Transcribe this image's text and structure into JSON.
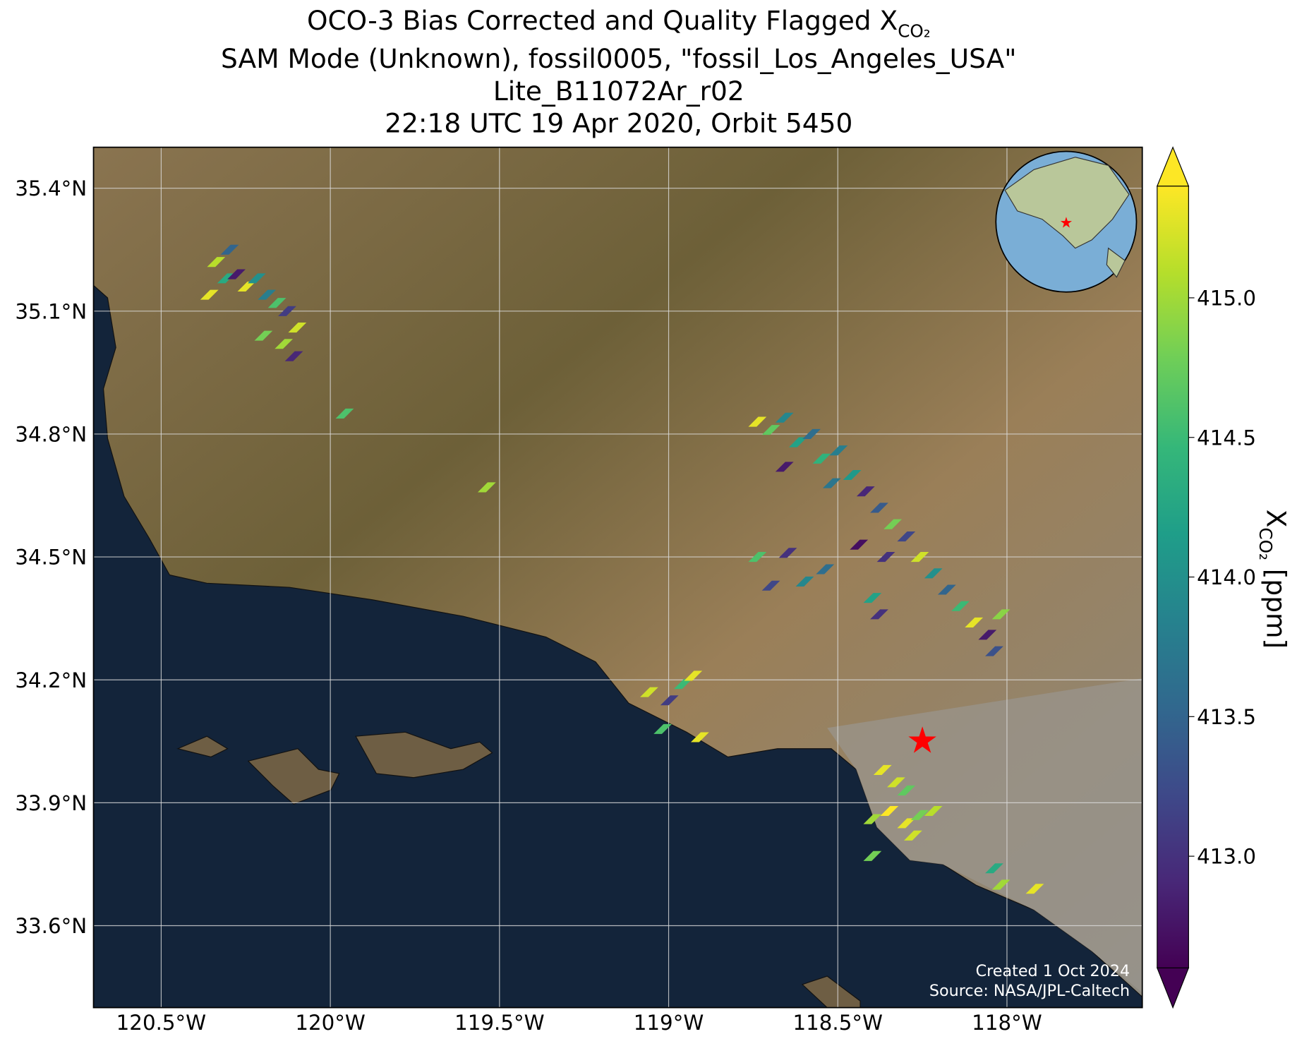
{
  "title": {
    "prefix": "OCO-3 Bias Corrected and Quality Flagged X",
    "subscript": "CO₂",
    "line2": "SAM Mode (Unknown), fossil0005, \"fossil_Los_Angeles_USA\"",
    "line3": "Lite_B11072Ar_r02",
    "line4": "22:18 UTC 19 Apr 2020, Orbit 5450"
  },
  "map": {
    "xlim": [
      -120.7,
      -117.6
    ],
    "ylim": [
      33.4,
      35.5
    ],
    "grid": true,
    "colormap": "viridis",
    "xticks": [
      {
        "value": -120.5,
        "label": "120.5°W"
      },
      {
        "value": -120,
        "label": "120°W"
      },
      {
        "value": -119.5,
        "label": "119.5°W"
      },
      {
        "value": -119,
        "label": "119°W"
      },
      {
        "value": -118.5,
        "label": "118.5°W"
      },
      {
        "value": -118,
        "label": "118°W"
      }
    ],
    "yticks": [
      {
        "value": 33.6,
        "label": "33.6°N"
      },
      {
        "value": 33.9,
        "label": "33.9°N"
      },
      {
        "value": 34.2,
        "label": "34.2°N"
      },
      {
        "value": 34.5,
        "label": "34.5°N"
      },
      {
        "value": 34.8,
        "label": "34.8°N"
      },
      {
        "value": 35.1,
        "label": "35.1°N"
      },
      {
        "value": 35.4,
        "label": "35.4°N"
      }
    ],
    "target": {
      "lon": -118.25,
      "lat": 34.05
    },
    "soundings": {
      "lon": [
        -120.34,
        -120.31,
        -120.28,
        -120.25,
        -120.22,
        -120.19,
        -120.16,
        -120.13,
        -120.1,
        -120.2,
        -120.14,
        -120.11,
        -120.3,
        -120.36,
        -119.96,
        -119.54,
        -118.74,
        -118.7,
        -118.66,
        -118.62,
        -118.58,
        -118.55,
        -118.5,
        -118.46,
        -118.42,
        -118.38,
        -118.34,
        -118.3,
        -118.44,
        -118.36,
        -118.26,
        -118.22,
        -118.18,
        -118.14,
        -118.1,
        -118.06,
        -118.02,
        -118.04,
        -118.66,
        -118.52,
        -118.74,
        -118.65,
        -118.6,
        -118.54,
        -118.7,
        -118.4,
        -118.38,
        -119.06,
        -119.0,
        -118.96,
        -118.93,
        -119.02,
        -118.91,
        -118.37,
        -118.33,
        -118.3,
        -118.35,
        -118.3,
        -118.26,
        -118.22,
        -118.28,
        -118.4,
        -118.4,
        -118.04,
        -118.02,
        -117.92
      ],
      "lat": [
        35.22,
        35.18,
        35.19,
        35.16,
        35.18,
        35.14,
        35.12,
        35.1,
        35.06,
        35.04,
        35.02,
        34.99,
        35.25,
        35.14,
        34.85,
        34.67,
        34.83,
        34.81,
        34.84,
        34.78,
        34.8,
        34.74,
        34.76,
        34.7,
        34.66,
        34.62,
        34.58,
        34.55,
        34.53,
        34.5,
        34.5,
        34.46,
        34.42,
        34.38,
        34.34,
        34.31,
        34.36,
        34.27,
        34.72,
        34.68,
        34.5,
        34.51,
        34.44,
        34.47,
        34.43,
        34.4,
        34.36,
        34.17,
        34.15,
        34.19,
        34.21,
        34.08,
        34.06,
        33.98,
        33.95,
        33.93,
        33.88,
        33.85,
        33.87,
        33.88,
        33.82,
        33.86,
        33.77,
        33.74,
        33.7,
        33.69
      ],
      "xco2": [
        415.1,
        414.3,
        412.8,
        415.3,
        414.0,
        413.8,
        414.6,
        413.1,
        415.2,
        414.8,
        415.0,
        412.9,
        413.5,
        415.3,
        414.6,
        415.0,
        415.3,
        414.7,
        413.9,
        414.2,
        413.6,
        414.4,
        413.8,
        414.1,
        412.9,
        413.4,
        414.8,
        413.2,
        412.7,
        413.0,
        415.2,
        414.0,
        413.5,
        414.5,
        415.3,
        412.8,
        414.9,
        413.3,
        412.8,
        413.7,
        414.6,
        413.0,
        413.9,
        413.6,
        413.2,
        414.2,
        413.0,
        415.2,
        413.1,
        414.5,
        415.3,
        414.6,
        415.3,
        415.3,
        415.2,
        414.7,
        415.4,
        415.3,
        414.8,
        415.1,
        415.2,
        415.0,
        414.8,
        414.3,
        415.0,
        415.3
      ]
    }
  },
  "colorbar": {
    "label_prefix": "X",
    "label_subscript": "CO₂",
    "label_suffix": " [ppm]",
    "clim": [
      412.6,
      415.4
    ],
    "ticks": [
      {
        "value": 413,
        "label": "413.0"
      },
      413.5,
      {
        "value": 414,
        "label": "414.0"
      },
      414.5,
      {
        "value": 415,
        "label": "415.0"
      }
    ]
  },
  "annotations": {
    "created": "Created 1 Oct 2024",
    "source": "Source: NASA/JPL-Caltech"
  }
}
